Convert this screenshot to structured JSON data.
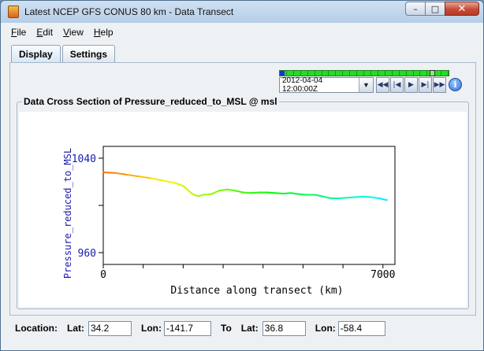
{
  "window": {
    "title": "Latest NCEP GFS CONUS 80 km - Data Transect"
  },
  "window_controls": {
    "minimize": "–",
    "maximize": "□",
    "close": "✕"
  },
  "menu": [
    {
      "label": "File",
      "key": "F",
      "rest": "ile"
    },
    {
      "label": "Edit",
      "key": "E",
      "rest": "dit"
    },
    {
      "label": "View",
      "key": "V",
      "rest": "iew"
    },
    {
      "label": "Help",
      "key": "H",
      "rest": "elp"
    }
  ],
  "tabs": {
    "display": "Display",
    "settings": "Settings",
    "active": "Display"
  },
  "animation": {
    "time_value": "2012-04-04 12:00:00Z",
    "timeline_steps": 24,
    "icons": [
      "rewind-icon",
      "step-back-icon",
      "play-icon",
      "step-forward-icon",
      "fast-forward-icon",
      "info-icon"
    ],
    "glyphs": {
      "rewind": "◀◀",
      "step_back": "|◀",
      "play": "▶",
      "step_forward": "▶|",
      "fast_forward": "▶▶",
      "info": "i"
    }
  },
  "panel": {
    "title": "Data Cross Section  of Pressure_reduced_to_MSL @ msl"
  },
  "chart_data": {
    "type": "line",
    "xlabel": "Distance along transect (km)",
    "ylabel": "Pressure_reduced_to_MSL",
    "xlim": [
      0,
      7300
    ],
    "ylim": [
      950,
      1050
    ],
    "xticks": [
      0,
      1000,
      2000,
      3000,
      4000,
      5000,
      6000,
      7000
    ],
    "xtick_labels": [
      {
        "value": 0,
        "label": "0"
      },
      {
        "value": 7000,
        "label": "7000"
      }
    ],
    "yticks": [
      960,
      1000,
      1040
    ],
    "ytick_labels": [
      {
        "value": 960,
        "label": "960"
      },
      {
        "value": 1040,
        "label": "1040"
      }
    ],
    "colormap": "rainbow",
    "series": [
      {
        "x": [
          0,
          300,
          600,
          900,
          1200,
          1500,
          1800,
          2000,
          2200,
          2300,
          2400,
          2500,
          2700,
          2900,
          3100,
          3300,
          3500,
          3700,
          3900,
          4100,
          4300,
          4500,
          4700,
          4900,
          5100,
          5300,
          5500,
          5700,
          5900,
          6100,
          6300,
          6500,
          6700,
          6900,
          7100
        ],
        "y": [
          1028,
          1027.5,
          1026,
          1024.5,
          1023,
          1021,
          1019,
          1016.5,
          1010.5,
          1008.5,
          1008,
          1009,
          1009.5,
          1012.5,
          1013.5,
          1012.5,
          1011,
          1010.5,
          1011,
          1011,
          1010.5,
          1010,
          1010.5,
          1009.5,
          1009,
          1009,
          1007.5,
          1006,
          1006,
          1006.5,
          1007,
          1007.5,
          1007,
          1006,
          1004.5
        ]
      }
    ]
  },
  "status": {
    "location_label": "Location:",
    "lat_label": "Lat:",
    "lat1": "34.2",
    "lon_label": "Lon:",
    "lon1": "-141.7",
    "to_label": "To",
    "lat_label2": "Lat:",
    "lat2": "36.8",
    "lon_label2": "Lon:",
    "lon2": "-58.4"
  }
}
